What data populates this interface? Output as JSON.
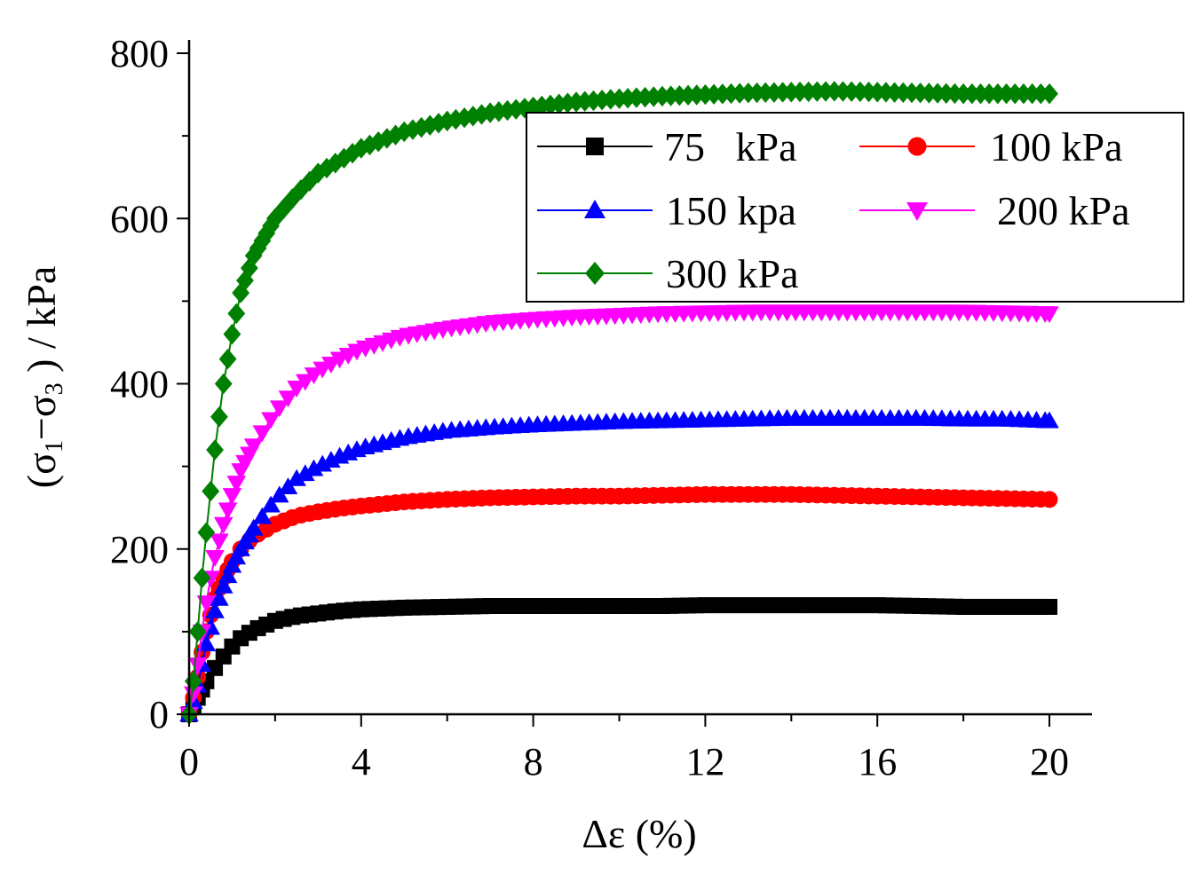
{
  "chart_data": {
    "type": "line",
    "xlabel": "Δε (%)",
    "ylabel_parts": {
      "open": "(σ",
      "sub1": "1",
      "minus": "−σ",
      "sub3": "3",
      "close": " ) / kPa"
    },
    "xlim": [
      0,
      21
    ],
    "ylim": [
      0,
      810
    ],
    "xticks": [
      "0",
      "4",
      "8",
      "12",
      "16",
      "20"
    ],
    "yticks": [
      "0",
      "200",
      "400",
      "600",
      "800"
    ],
    "x": [
      0,
      0.1,
      0.2,
      0.3,
      0.4,
      0.5,
      0.6,
      0.8,
      1.0,
      1.2,
      1.5,
      2.0,
      2.5,
      3.0,
      3.5,
      4.0,
      5.0,
      6.0,
      7.0,
      8.0,
      9.0,
      10.0,
      11.0,
      12.0,
      13.0,
      14.0,
      15.0,
      16.0,
      17.0,
      18.0,
      19.0,
      20.0
    ],
    "series": [
      {
        "name": "75   kPa",
        "color": "#000000",
        "marker": "square",
        "values": [
          0,
          10,
          20,
          30,
          40,
          48,
          56,
          70,
          82,
          92,
          102,
          113,
          119,
          122,
          125,
          127,
          129,
          130,
          131,
          131,
          131,
          131,
          131,
          132,
          132,
          132,
          132,
          132,
          131,
          130,
          130,
          130
        ]
      },
      {
        "name": "100 kPa",
        "color": "#ff0000",
        "marker": "circle",
        "values": [
          0,
          20,
          45,
          75,
          100,
          120,
          140,
          165,
          185,
          200,
          215,
          230,
          240,
          245,
          249,
          252,
          257,
          260,
          262,
          263,
          264,
          264,
          265,
          266,
          266,
          266,
          265,
          264,
          263,
          262,
          261,
          260
        ]
      },
      {
        "name": "150 kpa",
        "color": "#0000ff",
        "marker": "triangle-up",
        "values": [
          0,
          15,
          35,
          60,
          85,
          105,
          125,
          155,
          180,
          200,
          225,
          260,
          285,
          300,
          312,
          322,
          335,
          343,
          347,
          350,
          352,
          354,
          355,
          356,
          357,
          358,
          358,
          358,
          358,
          357,
          357,
          355
        ]
      },
      {
        "name": "200 kPa",
        "color": "#ff00ff",
        "marker": "triangle-down",
        "values": [
          0,
          25,
          60,
          100,
          135,
          165,
          190,
          230,
          265,
          295,
          325,
          365,
          395,
          415,
          430,
          442,
          458,
          467,
          474,
          478,
          481,
          483,
          485,
          486,
          487,
          487,
          487,
          487,
          487,
          487,
          486,
          485
        ]
      },
      {
        "name": "300 kPa",
        "color": "#008000",
        "marker": "diamond",
        "values": [
          0,
          40,
          100,
          165,
          220,
          270,
          320,
          400,
          460,
          510,
          555,
          600,
          630,
          655,
          670,
          685,
          705,
          718,
          728,
          735,
          741,
          745,
          748,
          750,
          752,
          753,
          754,
          753,
          752,
          751,
          751,
          751
        ]
      }
    ],
    "legend": {
      "position": "top-right",
      "entries": [
        "75   kPa",
        "100 kPa",
        "150 kpa",
        "200 kPa",
        "300 kPa"
      ]
    }
  }
}
